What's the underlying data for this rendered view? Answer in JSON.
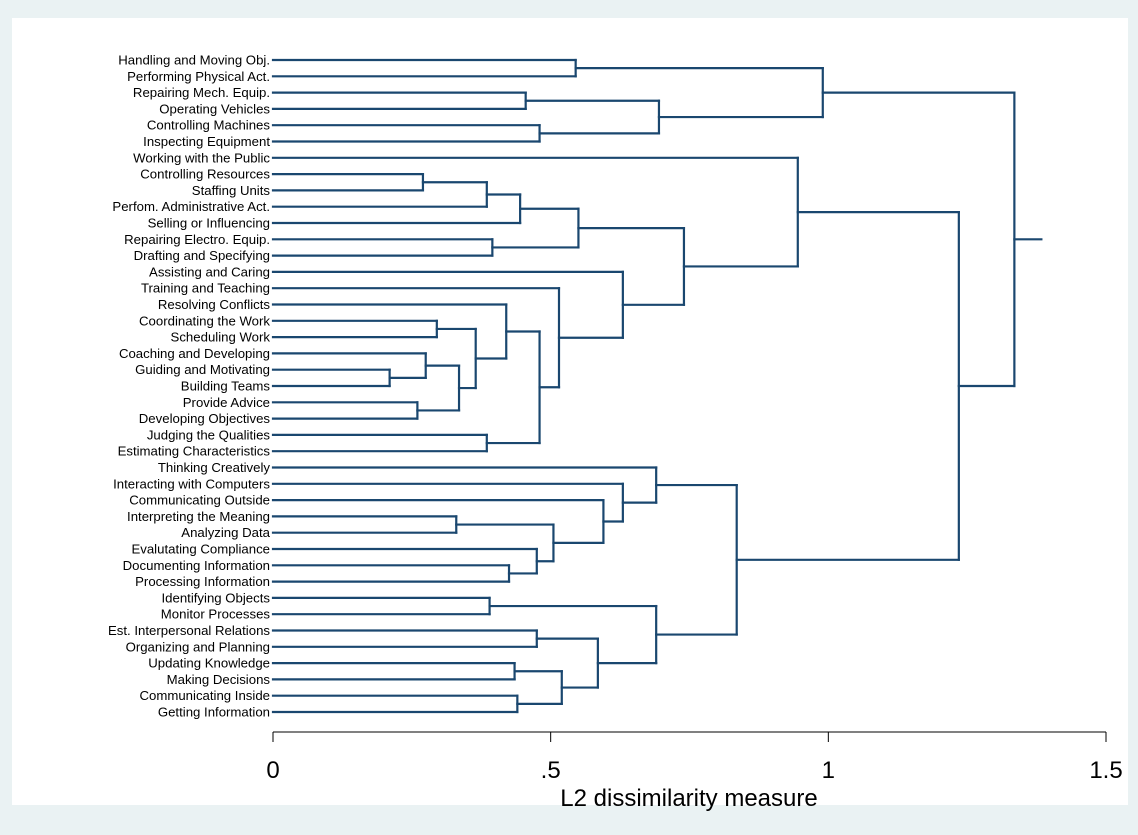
{
  "chart_data": {
    "type": "dendrogram",
    "orientation": "horizontal",
    "xlabel": "L2 dissimilarity measure",
    "xlim": [
      0,
      1.5
    ],
    "xticks": [
      {
        "value": 0,
        "label": "0"
      },
      {
        "value": 0.5,
        "label": ".5"
      },
      {
        "value": 1,
        "label": "1"
      },
      {
        "value": 1.5,
        "label": "1.5"
      }
    ],
    "grid": false,
    "colors": {
      "background": "#eaf2f3",
      "plot_region": "#ffffff",
      "lines": "#1a476f",
      "text": "#000000"
    },
    "leaves": [
      "Handling and Moving Obj.",
      "Performing Physical Act.",
      "Repairing Mech. Equip.",
      "Operating Vehicles",
      "Controlling Machines",
      "Inspecting Equipment",
      "Working with the Public",
      "Controlling Resources",
      "Staffing Units",
      "Perfom. Administrative Act.",
      "Selling or Influencing",
      "Repairing Electro. Equip.",
      "Drafting and Specifying",
      "Assisting and Caring",
      "Training and Teaching",
      "Resolving Conflicts",
      "Coordinating the Work",
      "Scheduling Work",
      "Coaching and Developing",
      "Guiding and Motivating",
      "Building Teams",
      "Provide Advice",
      "Developing Objectives",
      "Judging the Qualities",
      "Estimating Characteristics",
      "Thinking Creatively",
      "Interacting with Computers",
      "Communicating Outside",
      "Interpreting the Meaning",
      "Analyzing Data",
      "Evalutating Compliance",
      "Documenting Information",
      "Processing Information",
      "Identifying Objects",
      "Monitor Processes",
      "Est. Interpersonal Relations",
      "Organizing and Planning",
      "Updating Knowledge",
      "Making Decisions",
      "Communicating Inside",
      "Getting Information"
    ],
    "merges": [
      {
        "id": "m1",
        "children": [
          "L0",
          "L1"
        ],
        "height": 0.545
      },
      {
        "id": "m2",
        "children": [
          "L2",
          "L3"
        ],
        "height": 0.455
      },
      {
        "id": "m3",
        "children": [
          "L4",
          "L5"
        ],
        "height": 0.48
      },
      {
        "id": "m4",
        "children": [
          "m2",
          "m3"
        ],
        "height": 0.695
      },
      {
        "id": "m5",
        "children": [
          "m1",
          "m4"
        ],
        "height": 0.99
      },
      {
        "id": "m6",
        "children": [
          "L7",
          "L8"
        ],
        "height": 0.27
      },
      {
        "id": "m7",
        "children": [
          "m6",
          "L9"
        ],
        "height": 0.385
      },
      {
        "id": "m8",
        "children": [
          "m7",
          "L10"
        ],
        "height": 0.445
      },
      {
        "id": "m9",
        "children": [
          "L11",
          "L12"
        ],
        "height": 0.395
      },
      {
        "id": "m10",
        "children": [
          "m8",
          "m9"
        ],
        "height": 0.55
      },
      {
        "id": "m11",
        "children": [
          "L16",
          "L17"
        ],
        "height": 0.295
      },
      {
        "id": "m12",
        "children": [
          "L19",
          "L20"
        ],
        "height": 0.21
      },
      {
        "id": "m13",
        "children": [
          "L18",
          "m12"
        ],
        "height": 0.275
      },
      {
        "id": "m14",
        "children": [
          "L21",
          "L22"
        ],
        "height": 0.26
      },
      {
        "id": "m15",
        "children": [
          "m13",
          "m14"
        ],
        "height": 0.335
      },
      {
        "id": "m16",
        "children": [
          "m11",
          "m15"
        ],
        "height": 0.365
      },
      {
        "id": "m17",
        "children": [
          "L15",
          "m16"
        ],
        "height": 0.42
      },
      {
        "id": "m18",
        "children": [
          "L23",
          "L24"
        ],
        "height": 0.385
      },
      {
        "id": "m19",
        "children": [
          "m17",
          "m18"
        ],
        "height": 0.48
      },
      {
        "id": "m20",
        "children": [
          "L14",
          "m19"
        ],
        "height": 0.515
      },
      {
        "id": "m21",
        "children": [
          "L13",
          "m20"
        ],
        "height": 0.63
      },
      {
        "id": "m22",
        "children": [
          "m10",
          "m21"
        ],
        "height": 0.74
      },
      {
        "id": "m23",
        "children": [
          "L6",
          "m22"
        ],
        "height": 0.945
      },
      {
        "id": "m24",
        "children": [
          "L28",
          "L29"
        ],
        "height": 0.33
      },
      {
        "id": "m25",
        "children": [
          "L31",
          "L32"
        ],
        "height": 0.425
      },
      {
        "id": "m26",
        "children": [
          "L30",
          "m25"
        ],
        "height": 0.475
      },
      {
        "id": "m27",
        "children": [
          "m24",
          "m26"
        ],
        "height": 0.505
      },
      {
        "id": "m28",
        "children": [
          "L27",
          "m27"
        ],
        "height": 0.595
      },
      {
        "id": "m29",
        "children": [
          "L26",
          "m28"
        ],
        "height": 0.63
      },
      {
        "id": "m30",
        "children": [
          "L25",
          "m29"
        ],
        "height": 0.69
      },
      {
        "id": "m31",
        "children": [
          "L33",
          "L34"
        ],
        "height": 0.39
      },
      {
        "id": "m32",
        "children": [
          "L35",
          "L36"
        ],
        "height": 0.475
      },
      {
        "id": "m33",
        "children": [
          "L37",
          "L38"
        ],
        "height": 0.435
      },
      {
        "id": "m34",
        "children": [
          "L39",
          "L40"
        ],
        "height": 0.44
      },
      {
        "id": "m35",
        "children": [
          "m33",
          "m34"
        ],
        "height": 0.52
      },
      {
        "id": "m36",
        "children": [
          "m32",
          "m35"
        ],
        "height": 0.585
      },
      {
        "id": "m37",
        "children": [
          "m31",
          "m36"
        ],
        "height": 0.69
      },
      {
        "id": "m38",
        "children": [
          "m30",
          "m37"
        ],
        "height": 0.835
      },
      {
        "id": "m39",
        "children": [
          "m23",
          "m38"
        ],
        "height": 1.235
      },
      {
        "id": "m40",
        "children": [
          "m5",
          "m39"
        ],
        "height": 1.335
      }
    ]
  }
}
